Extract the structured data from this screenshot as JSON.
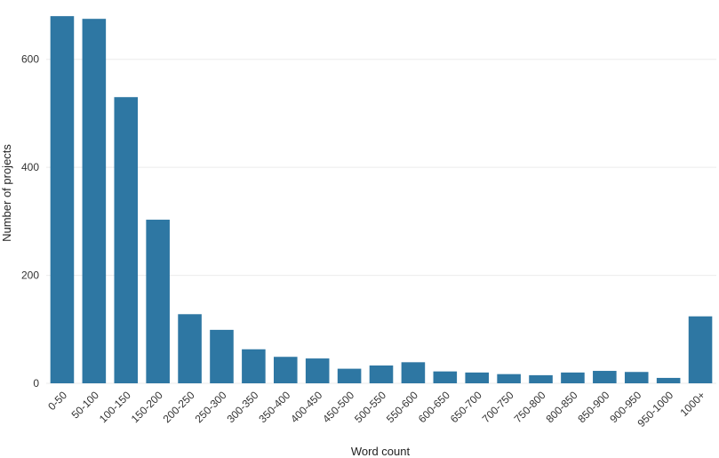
{
  "chart_data": {
    "type": "bar",
    "title": "",
    "xlabel": "Word count",
    "ylabel": "Number of projects",
    "categories": [
      "0-50",
      "50-100",
      "100-150",
      "150-200",
      "200-250",
      "250-300",
      "300-350",
      "350-400",
      "400-450",
      "450-500",
      "500-550",
      "550-600",
      "600-650",
      "650-700",
      "700-750",
      "750-800",
      "800-850",
      "850-900",
      "900-950",
      "950-1000",
      "1000+"
    ],
    "values": [
      680,
      675,
      530,
      303,
      128,
      99,
      63,
      49,
      46,
      27,
      33,
      39,
      22,
      20,
      17,
      15,
      20,
      23,
      21,
      10,
      124
    ],
    "ylim": [
      0,
      700
    ],
    "yticks": [
      0,
      200,
      400,
      600
    ],
    "grid": true,
    "bar_color": "#2e77a3",
    "grid_color": "#ebebeb"
  }
}
